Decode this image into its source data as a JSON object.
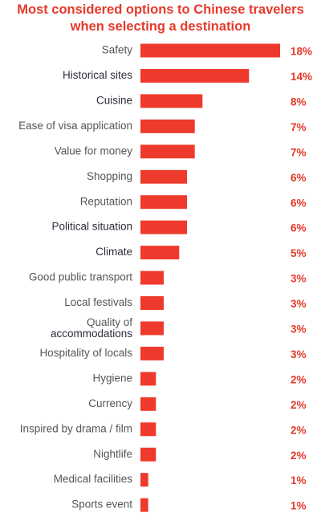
{
  "chart_data": {
    "type": "bar",
    "orientation": "horizontal",
    "title_lines": [
      "Most considered options to Chinese travelers",
      "when selecting a destination"
    ],
    "categories": [
      "Safety",
      "Historical sites",
      "Cuisine",
      "Ease of visa application",
      "Value for money",
      "Shopping",
      "Reputation",
      "Political situation",
      "Climate",
      "Good public transport",
      "Local festivals",
      "Quality of accommodations",
      "Hospitality of locals",
      "Hygiene",
      "Currency",
      "Inspired by drama / film",
      "Nightlife",
      "Medical facilities",
      "Sports event"
    ],
    "values": [
      18,
      14,
      8,
      7,
      7,
      6,
      6,
      6,
      5,
      3,
      3,
      3,
      3,
      2,
      2,
      2,
      2,
      1,
      1
    ],
    "value_labels": [
      "18%",
      "14%",
      "8%",
      "7%",
      "7%",
      "6%",
      "6%",
      "6%",
      "5%",
      "3%",
      "3%",
      "3%",
      "3%",
      "2%",
      "2%",
      "2%",
      "2%",
      "1%",
      "1%"
    ],
    "unit": "%",
    "xlim": [
      0,
      18
    ],
    "grid": false,
    "legend": "none",
    "colors": {
      "bar": "#ee3a2c",
      "title": "#e5392b",
      "value_label": "#e5392b",
      "category_label": "#555555",
      "category_label_dark": "#2c2c3c"
    }
  }
}
